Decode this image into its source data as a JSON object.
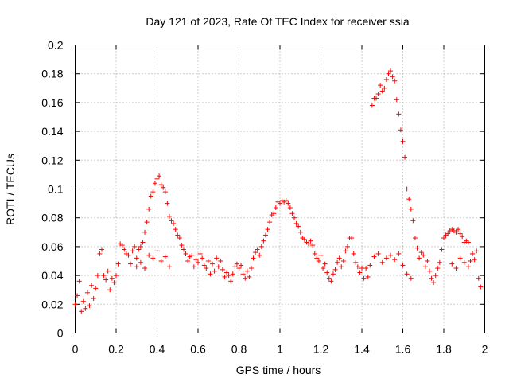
{
  "chart_data": {
    "type": "scatter",
    "title": "Day 121 of 2023, Rate Of TEC Index for receiver ssia",
    "xlabel": "GPS time / hours",
    "ylabel": "ROTI / TECUs",
    "xlim": [
      0,
      2
    ],
    "ylim": [
      0,
      0.2
    ],
    "x_ticks": [
      "0",
      "0.2",
      "0.4",
      "0.6",
      "0.8",
      "1",
      "1.2",
      "1.4",
      "1.6",
      "1.8",
      "2"
    ],
    "y_ticks": [
      "0",
      "0.02",
      "0.04",
      "0.06",
      "0.08",
      "0.1",
      "0.12",
      "0.14",
      "0.16",
      "0.18",
      "0.2"
    ],
    "grid": true,
    "marker": "+",
    "color": "#ff0000",
    "series": [
      {
        "name": "ROTI",
        "points": [
          [
            0.0,
            0.02
          ],
          [
            0.01,
            0.026
          ],
          [
            0.02,
            0.036
          ],
          [
            0.03,
            0.015
          ],
          [
            0.04,
            0.022
          ],
          [
            0.05,
            0.017
          ],
          [
            0.06,
            0.028
          ],
          [
            0.07,
            0.019
          ],
          [
            0.08,
            0.033
          ],
          [
            0.09,
            0.024
          ],
          [
            0.1,
            0.031
          ],
          [
            0.11,
            0.04
          ],
          [
            0.12,
            0.055
          ],
          [
            0.13,
            0.058
          ],
          [
            0.14,
            0.04
          ],
          [
            0.15,
            0.037
          ],
          [
            0.16,
            0.043
          ],
          [
            0.17,
            0.03
          ],
          [
            0.18,
            0.038
          ],
          [
            0.19,
            0.035
          ],
          [
            0.2,
            0.04
          ],
          [
            0.21,
            0.048
          ],
          [
            0.22,
            0.062
          ],
          [
            0.23,
            0.061
          ],
          [
            0.24,
            0.058
          ],
          [
            0.25,
            0.055
          ],
          [
            0.26,
            0.054
          ],
          [
            0.27,
            0.048
          ],
          [
            0.28,
            0.057
          ],
          [
            0.29,
            0.06
          ],
          [
            0.3,
            0.052
          ],
          [
            0.31,
            0.058
          ],
          [
            0.32,
            0.06
          ],
          [
            0.33,
            0.063
          ],
          [
            0.34,
            0.07
          ],
          [
            0.35,
            0.077
          ],
          [
            0.36,
            0.086
          ],
          [
            0.37,
            0.095
          ],
          [
            0.38,
            0.098
          ],
          [
            0.39,
            0.104
          ],
          [
            0.4,
            0.107
          ],
          [
            0.41,
            0.109
          ],
          [
            0.42,
            0.103
          ],
          [
            0.43,
            0.101
          ],
          [
            0.44,
            0.098
          ],
          [
            0.45,
            0.09
          ],
          [
            0.46,
            0.081
          ],
          [
            0.47,
            0.078
          ],
          [
            0.48,
            0.076
          ],
          [
            0.49,
            0.072
          ],
          [
            0.5,
            0.068
          ],
          [
            0.51,
            0.066
          ],
          [
            0.52,
            0.061
          ],
          [
            0.53,
            0.058
          ],
          [
            0.54,
            0.055
          ],
          [
            0.55,
            0.05
          ],
          [
            0.56,
            0.053
          ],
          [
            0.57,
            0.054
          ],
          [
            0.58,
            0.046
          ],
          [
            0.59,
            0.051
          ],
          [
            0.6,
            0.049
          ],
          [
            0.61,
            0.055
          ],
          [
            0.62,
            0.052
          ],
          [
            0.63,
            0.047
          ],
          [
            0.64,
            0.045
          ],
          [
            0.65,
            0.05
          ],
          [
            0.66,
            0.041
          ],
          [
            0.67,
            0.048
          ],
          [
            0.68,
            0.043
          ],
          [
            0.69,
            0.052
          ],
          [
            0.7,
            0.046
          ],
          [
            0.71,
            0.05
          ],
          [
            0.72,
            0.044
          ],
          [
            0.73,
            0.039
          ],
          [
            0.74,
            0.042
          ],
          [
            0.75,
            0.04
          ],
          [
            0.76,
            0.036
          ],
          [
            0.77,
            0.041
          ],
          [
            0.78,
            0.046
          ],
          [
            0.79,
            0.048
          ],
          [
            0.8,
            0.045
          ],
          [
            0.81,
            0.047
          ],
          [
            0.82,
            0.041
          ],
          [
            0.83,
            0.038
          ],
          [
            0.84,
            0.043
          ],
          [
            0.85,
            0.039
          ],
          [
            0.86,
            0.045
          ],
          [
            0.87,
            0.052
          ],
          [
            0.88,
            0.056
          ],
          [
            0.89,
            0.058
          ],
          [
            0.9,
            0.054
          ],
          [
            0.91,
            0.06
          ],
          [
            0.92,
            0.064
          ],
          [
            0.93,
            0.068
          ],
          [
            0.94,
            0.072
          ],
          [
            0.95,
            0.077
          ],
          [
            0.96,
            0.082
          ],
          [
            0.97,
            0.083
          ],
          [
            0.98,
            0.087
          ],
          [
            0.99,
            0.091
          ],
          [
            1.0,
            0.09
          ],
          [
            1.01,
            0.092
          ],
          [
            1.02,
            0.091
          ],
          [
            1.03,
            0.092
          ],
          [
            1.04,
            0.09
          ],
          [
            1.05,
            0.087
          ],
          [
            1.06,
            0.083
          ],
          [
            1.07,
            0.08
          ],
          [
            1.08,
            0.076
          ],
          [
            1.09,
            0.074
          ],
          [
            1.1,
            0.07
          ],
          [
            1.11,
            0.066
          ],
          [
            1.12,
            0.065
          ],
          [
            1.13,
            0.063
          ],
          [
            1.14,
            0.062
          ],
          [
            1.15,
            0.064
          ],
          [
            1.16,
            0.061
          ],
          [
            1.17,
            0.055
          ],
          [
            1.18,
            0.052
          ],
          [
            1.19,
            0.05
          ],
          [
            1.2,
            0.054
          ],
          [
            1.21,
            0.045
          ],
          [
            1.22,
            0.048
          ],
          [
            1.23,
            0.042
          ],
          [
            1.24,
            0.038
          ],
          [
            1.25,
            0.036
          ],
          [
            1.26,
            0.041
          ],
          [
            1.27,
            0.044
          ],
          [
            1.28,
            0.049
          ],
          [
            1.29,
            0.052
          ],
          [
            1.3,
            0.046
          ],
          [
            1.31,
            0.05
          ],
          [
            1.32,
            0.057
          ],
          [
            1.33,
            0.06
          ],
          [
            1.34,
            0.066
          ],
          [
            1.35,
            0.066
          ],
          [
            1.36,
            0.055
          ],
          [
            1.37,
            0.049
          ],
          [
            1.38,
            0.046
          ],
          [
            1.39,
            0.042
          ],
          [
            1.4,
            0.045
          ],
          [
            1.41,
            0.038
          ],
          [
            1.42,
            0.045
          ],
          [
            1.43,
            0.039
          ],
          [
            1.44,
            0.047
          ],
          [
            1.45,
            0.158
          ],
          [
            1.46,
            0.163
          ],
          [
            1.47,
            0.163
          ],
          [
            1.48,
            0.166
          ],
          [
            1.49,
            0.172
          ],
          [
            1.5,
            0.168
          ],
          [
            1.51,
            0.17
          ],
          [
            1.52,
            0.176
          ],
          [
            1.53,
            0.18
          ],
          [
            1.54,
            0.182
          ],
          [
            1.55,
            0.178
          ],
          [
            1.56,
            0.175
          ],
          [
            1.57,
            0.162
          ],
          [
            1.58,
            0.152
          ],
          [
            1.59,
            0.141
          ],
          [
            1.6,
            0.133
          ],
          [
            1.61,
            0.122
          ],
          [
            1.62,
            0.1
          ],
          [
            1.63,
            0.093
          ],
          [
            1.64,
            0.086
          ],
          [
            1.65,
            0.078
          ],
          [
            1.66,
            0.066
          ],
          [
            1.67,
            0.059
          ],
          [
            1.68,
            0.052
          ],
          [
            1.69,
            0.056
          ],
          [
            1.7,
            0.054
          ],
          [
            1.71,
            0.046
          ],
          [
            1.72,
            0.05
          ],
          [
            1.73,
            0.043
          ],
          [
            1.74,
            0.038
          ],
          [
            1.75,
            0.035
          ],
          [
            1.76,
            0.04
          ],
          [
            1.77,
            0.045
          ],
          [
            1.78,
            0.049
          ],
          [
            1.79,
            0.058
          ],
          [
            1.8,
            0.066
          ],
          [
            1.81,
            0.068
          ],
          [
            1.82,
            0.069
          ],
          [
            1.83,
            0.071
          ],
          [
            1.84,
            0.072
          ],
          [
            1.85,
            0.071
          ],
          [
            1.86,
            0.07
          ],
          [
            1.87,
            0.072
          ],
          [
            1.88,
            0.069
          ],
          [
            1.89,
            0.067
          ],
          [
            1.9,
            0.063
          ],
          [
            1.91,
            0.064
          ],
          [
            1.92,
            0.063
          ],
          [
            1.93,
            0.05
          ],
          [
            1.94,
            0.055
          ],
          [
            1.95,
            0.051
          ],
          [
            1.96,
            0.057
          ],
          [
            1.97,
            0.038
          ],
          [
            1.98,
            0.032
          ],
          [
            1.46,
            0.053
          ],
          [
            1.48,
            0.055
          ],
          [
            1.5,
            0.049
          ],
          [
            1.52,
            0.052
          ],
          [
            1.54,
            0.054
          ],
          [
            1.56,
            0.051
          ],
          [
            1.58,
            0.055
          ],
          [
            1.6,
            0.047
          ],
          [
            1.62,
            0.041
          ],
          [
            1.64,
            0.038
          ],
          [
            0.36,
            0.054
          ],
          [
            0.38,
            0.052
          ],
          [
            0.4,
            0.057
          ],
          [
            0.42,
            0.05
          ],
          [
            0.44,
            0.053
          ],
          [
            0.46,
            0.046
          ],
          [
            0.3,
            0.046
          ],
          [
            0.32,
            0.049
          ],
          [
            0.34,
            0.045
          ],
          [
            1.84,
            0.048
          ],
          [
            1.86,
            0.045
          ],
          [
            1.88,
            0.052
          ],
          [
            1.9,
            0.049
          ],
          [
            1.92,
            0.046
          ],
          [
            1.94,
            0.055
          ]
        ]
      }
    ]
  }
}
